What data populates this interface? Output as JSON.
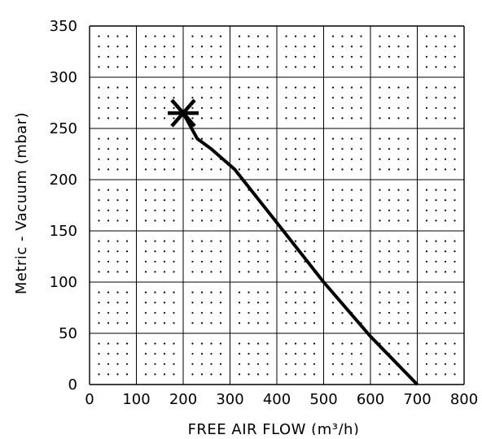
{
  "chart_data": {
    "type": "line",
    "title": "",
    "xlabel": "FREE AIR FLOW (m³/h)",
    "ylabel": "Metric - Vacuum (mbar)",
    "xlim": [
      0,
      800
    ],
    "ylim": [
      0,
      350
    ],
    "x_ticks": [
      "0",
      "100",
      "200",
      "300",
      "400",
      "500",
      "600",
      "700",
      "800"
    ],
    "y_ticks": [
      "0",
      "50",
      "100",
      "150",
      "200",
      "250",
      "300",
      "350"
    ],
    "grid": true,
    "dotted_minor_grid": true,
    "line_color": "#000000",
    "series": [
      {
        "x": [
          200,
          230,
          260,
          310,
          400,
          500,
          600,
          700
        ],
        "y": [
          265,
          240,
          230,
          210,
          158,
          100,
          47,
          0
        ]
      }
    ],
    "marker": {
      "x": 200,
      "y": 265,
      "symbol": "asterisk"
    }
  }
}
